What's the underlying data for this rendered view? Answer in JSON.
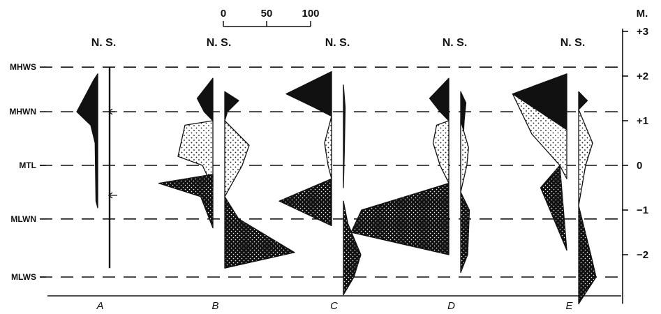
{
  "chart_data": {
    "type": "kite-diagram",
    "title": "",
    "scale_bar": {
      "ticks": [
        "0",
        "50",
        "100"
      ]
    },
    "tide_levels": [
      {
        "label": "MHWS",
        "value": 2.2
      },
      {
        "label": "MHWN",
        "value": 1.2
      },
      {
        "label": "MTL",
        "value": 0
      },
      {
        "label": "MLWN",
        "value": -1.2
      },
      {
        "label": "MLWS",
        "value": -2.5
      }
    ],
    "height_axis": {
      "unit_label": "M.",
      "ticks": [
        {
          "label": "+3",
          "value": 3
        },
        {
          "label": "+2",
          "value": 2
        },
        {
          "label": "+1",
          "value": 1
        },
        {
          "label": "0",
          "value": 0
        },
        {
          "label": "−1",
          "value": -1
        },
        {
          "label": "−2",
          "value": -2
        }
      ],
      "range": [
        -3.1,
        3
      ]
    },
    "column_header": "N. S.",
    "sites": [
      {
        "label": "A",
        "N": [
          {
            "fill": "black",
            "pts": [
              [
                2.05,
                0
              ],
              [
                1.9,
                -5
              ],
              [
                1.2,
                -24
              ],
              [
                0.9,
                -8
              ],
              [
                0.5,
                -3
              ],
              [
                -0.8,
                -2
              ],
              [
                -0.95,
                0
              ]
            ]
          }
        ],
        "S": [
          {
            "fill": "black",
            "pts": [
              [
                2.2,
                0
              ],
              [
                -2.3,
                0
              ]
            ]
          }
        ]
      },
      {
        "label": "B",
        "N": [
          {
            "fill": "black",
            "pts": [
              [
                1.95,
                0
              ],
              [
                1.5,
                -18
              ],
              [
                1.2,
                -10
              ],
              [
                1.0,
                0
              ]
            ]
          },
          {
            "fill": "stipple",
            "pts": [
              [
                1.0,
                0
              ],
              [
                0.9,
                -32
              ],
              [
                0.2,
                -40
              ],
              [
                0,
                -12
              ],
              [
                -0.5,
                0
              ]
            ]
          },
          {
            "fill": "dense",
            "pts": [
              [
                -0.2,
                0
              ],
              [
                -0.4,
                -62
              ],
              [
                -0.7,
                -14
              ],
              [
                -1.4,
                0
              ]
            ]
          }
        ],
        "S": [
          {
            "fill": "black",
            "pts": [
              [
                1.65,
                0
              ],
              [
                1.45,
                16
              ],
              [
                1.2,
                3
              ],
              [
                1.0,
                0
              ]
            ]
          },
          {
            "fill": "stipple",
            "pts": [
              [
                1.0,
                0
              ],
              [
                0.45,
                28
              ],
              [
                0,
                20
              ],
              [
                -0.7,
                0
              ]
            ]
          },
          {
            "fill": "dense",
            "pts": [
              [
                -0.7,
                0
              ],
              [
                -1.2,
                16
              ],
              [
                -1.95,
                80
              ],
              [
                -2.3,
                0
              ]
            ]
          }
        ]
      },
      {
        "label": "C",
        "N": [
          {
            "fill": "black",
            "pts": [
              [
                2.1,
                0
              ],
              [
                1.6,
                -52
              ],
              [
                1.3,
                -20
              ],
              [
                1.1,
                0
              ]
            ]
          },
          {
            "fill": "stipple",
            "pts": [
              [
                1.1,
                0
              ],
              [
                0.5,
                -8
              ],
              [
                0,
                -4
              ],
              [
                -0.3,
                0
              ]
            ]
          },
          {
            "fill": "dense",
            "pts": [
              [
                -0.3,
                0
              ],
              [
                -0.8,
                -60
              ],
              [
                -1.35,
                0
              ]
            ]
          }
        ],
        "S": [
          {
            "fill": "black",
            "pts": [
              [
                1.8,
                0
              ],
              [
                1.3,
                2
              ],
              [
                0.3,
                1
              ],
              [
                -0.5,
                0
              ]
            ]
          },
          {
            "fill": "dense",
            "pts": [
              [
                -0.8,
                0
              ],
              [
                -1.3,
                5
              ],
              [
                -2.0,
                20
              ],
              [
                -2.5,
                12
              ],
              [
                -2.9,
                0
              ]
            ]
          }
        ]
      },
      {
        "label": "D",
        "N": [
          {
            "fill": "black",
            "pts": [
              [
                1.95,
                0
              ],
              [
                1.5,
                -22
              ],
              [
                1.2,
                -10
              ],
              [
                1.0,
                0
              ]
            ]
          },
          {
            "fill": "stipple",
            "pts": [
              [
                1.0,
                0
              ],
              [
                0.9,
                -14
              ],
              [
                0.5,
                -18
              ],
              [
                0,
                -10
              ],
              [
                -0.4,
                0
              ]
            ]
          },
          {
            "fill": "dense",
            "pts": [
              [
                -0.4,
                0
              ],
              [
                -1.0,
                -100
              ],
              [
                -1.5,
                -112
              ],
              [
                -2.0,
                0
              ]
            ]
          }
        ],
        "S": [
          {
            "fill": "black",
            "pts": [
              [
                1.65,
                0
              ],
              [
                1.4,
                6
              ],
              [
                1.0,
                4
              ],
              [
                0.3,
                2
              ],
              [
                -0.3,
                0
              ]
            ]
          },
          {
            "fill": "stipple",
            "pts": [
              [
                1.0,
                0
              ],
              [
                0.4,
                9
              ],
              [
                0,
                7
              ],
              [
                -0.6,
                0
              ]
            ]
          },
          {
            "fill": "dense",
            "pts": [
              [
                -0.6,
                0
              ],
              [
                -1.0,
                10
              ],
              [
                -2.0,
                8
              ],
              [
                -2.4,
                0
              ]
            ]
          }
        ]
      },
      {
        "label": "E",
        "N": [
          {
            "fill": "black",
            "pts": [
              [
                2.05,
                0
              ],
              [
                1.6,
                -62
              ],
              [
                0.6,
                0
              ]
            ]
          },
          {
            "fill": "stipple",
            "pts": [
              [
                0.8,
                0
              ],
              [
                1.6,
                -62
              ],
              [
                0.7,
                -40
              ],
              [
                0,
                -8
              ],
              [
                -0.3,
                0
              ]
            ]
          },
          {
            "fill": "dense",
            "pts": [
              [
                0,
                -8
              ],
              [
                -0.5,
                -30
              ],
              [
                -1.2,
                -15
              ],
              [
                -1.9,
                0
              ]
            ]
          }
        ],
        "S": [
          {
            "fill": "black",
            "pts": [
              [
                1.65,
                0
              ],
              [
                1.45,
                10
              ],
              [
                1.25,
                0
              ]
            ]
          },
          {
            "fill": "stipple",
            "pts": [
              [
                1.25,
                0
              ],
              [
                0.5,
                16
              ],
              [
                0,
                8
              ],
              [
                -0.9,
                0
              ]
            ]
          },
          {
            "fill": "dense",
            "pts": [
              [
                -0.9,
                0
              ],
              [
                -2.0,
                14
              ],
              [
                -2.5,
                20
              ],
              [
                -3.1,
                0
              ]
            ]
          }
        ]
      }
    ]
  }
}
